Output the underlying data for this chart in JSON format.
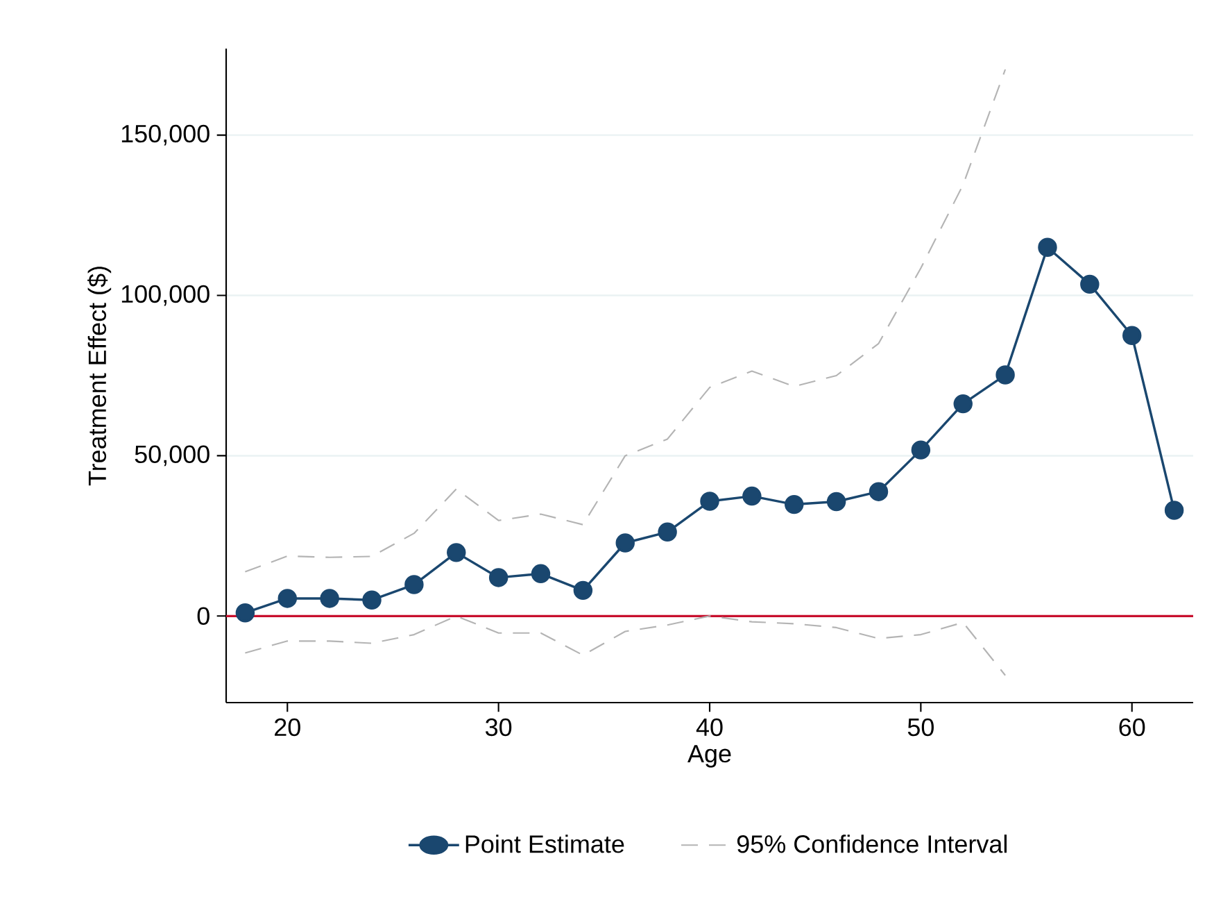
{
  "chart_data": {
    "type": "line",
    "xlabel": "Age",
    "ylabel": "Treatment Effect ($)",
    "x": [
      18,
      20,
      22,
      24,
      26,
      28,
      30,
      32,
      34,
      36,
      38,
      40,
      42,
      44,
      46,
      48,
      50,
      52,
      54,
      56,
      58,
      60,
      62
    ],
    "series": [
      {
        "name": "Point Estimate",
        "color": "#1a476f",
        "marker": "circle",
        "line_style": "solid",
        "values": [
          1000,
          5500,
          5500,
          5000,
          9800,
          19800,
          12000,
          13200,
          8000,
          22800,
          26200,
          35800,
          37400,
          34800,
          35700,
          38800,
          51800,
          66200,
          75200,
          115000,
          103500,
          87500,
          33000
        ]
      },
      {
        "name": "95% Confidence Interval",
        "color": "#b4b4b4",
        "marker": "none",
        "line_style": "dashed",
        "x": [
          18,
          20,
          22,
          24,
          26,
          28,
          30,
          32,
          34,
          36,
          38,
          40,
          42,
          44,
          46,
          48,
          50,
          52,
          54
        ],
        "values": [
          13800,
          18700,
          18300,
          18600,
          25800,
          39600,
          29800,
          31800,
          28500,
          50000,
          55200,
          71300,
          76400,
          71600,
          75000,
          85000,
          108500,
          134500,
          170500
        ]
      },
      {
        "color": "#b4b4b4",
        "marker": "none",
        "line_style": "dashed",
        "x": [
          18,
          20,
          22,
          24,
          26,
          28,
          30,
          32,
          34,
          36,
          38,
          40,
          42,
          44,
          46,
          48,
          50,
          52,
          54
        ],
        "values": [
          -11500,
          -7800,
          -7800,
          -8500,
          -5800,
          0,
          -5300,
          -5300,
          -12200,
          -4800,
          -2800,
          0,
          -1800,
          -2400,
          -3600,
          -7000,
          -5800,
          -2000,
          -18500
        ]
      }
    ],
    "xlim": [
      17.1,
      62.9
    ],
    "ylim": [
      -27000,
      177000
    ],
    "xticks": [
      20,
      30,
      40,
      50,
      60
    ],
    "yticks": [
      {
        "value": 0,
        "label": "0"
      },
      {
        "value": 50000,
        "label": "50,000"
      },
      {
        "value": 100000,
        "label": "100,000"
      },
      {
        "value": 150000,
        "label": "150,000"
      }
    ],
    "ref_lines": [
      {
        "axis": "y",
        "value": 0,
        "color": "#c8102e"
      }
    ],
    "grid": "y",
    "legend": "bottom"
  }
}
